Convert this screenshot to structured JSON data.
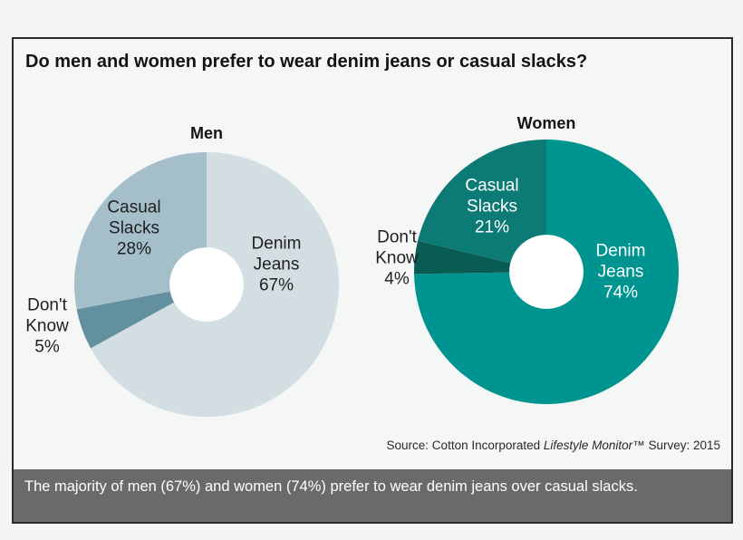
{
  "page": {
    "background": "#f5f5f5",
    "frame_border_color": "#2b2b2b"
  },
  "header": {
    "title": "Do men and women prefer to wear denim jeans or casual slacks?"
  },
  "chart_data": [
    {
      "type": "pie",
      "title": "Men",
      "donut_hole_ratio": 0.28,
      "hole_color": "#ffffff",
      "start_angle_deg": 0,
      "direction": "clockwise",
      "segments": [
        {
          "label": "Denim Jeans",
          "value": 67,
          "display": "Denim\nJeans\n67%",
          "color": "#d3dee2",
          "label_placement": "inside"
        },
        {
          "label": "Don't Know",
          "value": 5,
          "display": "Don't\nKnow\n5%",
          "color": "#63909f",
          "label_placement": "outside"
        },
        {
          "label": "Casual Slacks",
          "value": 28,
          "display": "Casual\nSlacks\n28%",
          "color": "#a4bfc9",
          "label_placement": "inside"
        }
      ]
    },
    {
      "type": "pie",
      "title": "Women",
      "donut_hole_ratio": 0.28,
      "hole_color": "#ffffff",
      "start_angle_deg": 0,
      "direction": "clockwise",
      "segments": [
        {
          "label": "Denim Jeans",
          "value": 74,
          "display": "Denim\nJeans\n74%",
          "color": "#009490",
          "label_placement": "inside"
        },
        {
          "label": "Don't Know",
          "value": 4,
          "display": "Don't\nKnow\n4%",
          "color": "#085c54",
          "label_placement": "outside"
        },
        {
          "label": "Casual Slacks",
          "value": 21,
          "display": "Casual\nSlacks\n21%",
          "color": "#0c7b76",
          "label_placement": "inside"
        }
      ]
    }
  ],
  "source": {
    "prefix": "Source: Cotton Incorporated ",
    "italic": "Lifestyle Monitor",
    "suffix": "™ Survey: 2015"
  },
  "caption": {
    "text": "The majority of men (67%) and women (74%) prefer to wear denim jeans over casual slacks.",
    "background": "#6a6a6a"
  }
}
